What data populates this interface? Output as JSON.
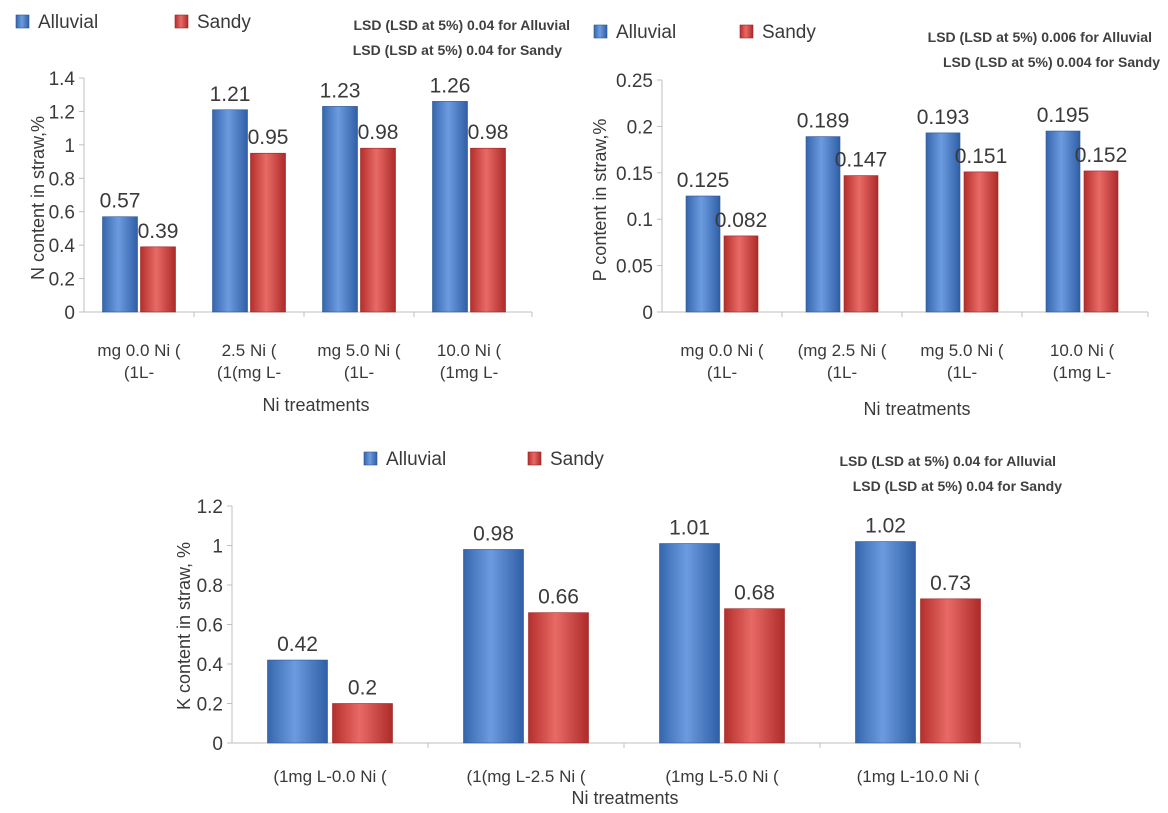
{
  "colors": {
    "alluvial": "#4a7ec6",
    "sandy": "#cf3e3b",
    "axis": "#bfbfbf",
    "text": "#3a3a3a"
  },
  "chart_data": [
    {
      "type": "bar",
      "ylabel": "N content in straw,%",
      "xlabel": "Ni treatments",
      "ylim": [
        0,
        1.4
      ],
      "ticks": [
        "0",
        "0.2",
        "0.4",
        "0.6",
        "0.8",
        "1",
        "1.2",
        "1.4"
      ],
      "categories": [
        [
          "mg 0.0 Ni (",
          "(1L-"
        ],
        [
          "2.5  Ni (",
          "(1(mg L-"
        ],
        [
          "mg 5.0 Ni (",
          "(1L-"
        ],
        [
          "10.0  Ni (",
          "(1mg L-"
        ]
      ],
      "series": [
        {
          "name": "Alluvial",
          "values": [
            0.57,
            1.21,
            1.23,
            1.26
          ],
          "labels": [
            "0.57",
            "1.21",
            "1.23",
            "1.26"
          ]
        },
        {
          "name": "Sandy",
          "values": [
            0.39,
            0.95,
            0.98,
            0.98
          ],
          "labels": [
            "0.39",
            "0.95",
            "0.98",
            "0.98"
          ]
        }
      ],
      "annotations": [
        "LSD (LSD at 5%) 0.04 for Alluvial",
        "LSD (LSD at 5%)  0.04 for Sandy"
      ],
      "legend": "top-left"
    },
    {
      "type": "bar",
      "ylabel": "P content  in straw,%",
      "xlabel": "Ni treatments",
      "ylim": [
        0,
        0.25
      ],
      "ticks": [
        "0",
        "0.05",
        "0.1",
        "0.15",
        "0.2",
        "0.25"
      ],
      "categories": [
        [
          "mg 0.0 Ni (",
          "(1L-"
        ],
        [
          "(mg 2.5  Ni (",
          "(1L-"
        ],
        [
          "mg 5.0 Ni (",
          "(1L-"
        ],
        [
          "10.0  Ni (",
          "(1mg L-"
        ]
      ],
      "series": [
        {
          "name": "Alluvial",
          "values": [
            0.125,
            0.189,
            0.193,
            0.195
          ],
          "labels": [
            "0.125",
            "0.189",
            "0.193",
            "0.195"
          ]
        },
        {
          "name": "Sandy",
          "values": [
            0.082,
            0.147,
            0.151,
            0.152
          ],
          "labels": [
            "0.082",
            "0.147",
            "0.151",
            "0.152"
          ]
        }
      ],
      "annotations": [
        "LSD (LSD at 5%) 0.006 for Alluvial",
        "LSD (LSD at 5%)  0.004 for Sandy"
      ],
      "legend": "top-left"
    },
    {
      "type": "bar",
      "ylabel": "K content in straw, %",
      "xlabel": "Ni treatments",
      "ylim": [
        0,
        1.2
      ],
      "ticks": [
        "0",
        "0.2",
        "0.4",
        "0.6",
        "0.8",
        "1",
        "1.2"
      ],
      "categories": [
        [
          "(1mg L-0.0 Ni ("
        ],
        [
          "(1(mg L-2.5  Ni ("
        ],
        [
          "(1mg L-5.0 Ni ("
        ],
        [
          "(1mg L-10.0  Ni ("
        ]
      ],
      "series": [
        {
          "name": "Alluvial",
          "values": [
            0.42,
            0.98,
            1.01,
            1.02
          ],
          "labels": [
            "0.42",
            "0.98",
            "1.01",
            "1.02"
          ]
        },
        {
          "name": "Sandy",
          "values": [
            0.2,
            0.66,
            0.68,
            0.73
          ],
          "labels": [
            "0.2",
            "0.66",
            "0.68",
            "0.73"
          ]
        }
      ],
      "annotations": [
        "LSD (LSD at 5%) 0.04 for Alluvial",
        "LSD (LSD at 5%)  0.04 for Sandy"
      ],
      "legend": "top"
    }
  ]
}
